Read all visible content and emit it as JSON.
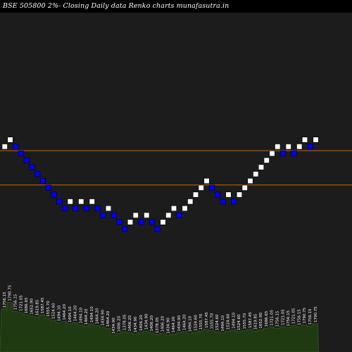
{
  "title": "BSE 505800  2%-  Closing Daily data  Renko  charts munafasutra.in",
  "colors": {
    "background": "#000000",
    "chart_area": "#1c1c1c",
    "up_brick": "#ffffff",
    "down_brick": "#0000ff",
    "level_line": "#cc6600",
    "volume_fill": "#1f3a12",
    "volume_edge": "#2e5a1a",
    "label": "#ffffff"
  },
  "chart_data": {
    "type": "renko",
    "title": "BSE 505800  2%-  Closing Daily data  Renko  charts munafasutra.in",
    "brick_size_percent": 2,
    "bricks": [
      {
        "step": 0,
        "level": 0,
        "dir": "up",
        "price": "1756.15"
      },
      {
        "step": 1,
        "level": 1,
        "dir": "up",
        "price": "1790.75"
      },
      {
        "step": 2,
        "level": 0,
        "dir": "down",
        "price": "1756.15"
      },
      {
        "step": 3,
        "level": -1,
        "dir": "down",
        "price": "1721.05"
      },
      {
        "step": 4,
        "level": -2,
        "dir": "down",
        "price": "1686.65"
      },
      {
        "step": 5,
        "level": -3,
        "dir": "down",
        "price": "1652.90"
      },
      {
        "step": 6,
        "level": -4,
        "dir": "down",
        "price": "1619.85"
      },
      {
        "step": 7,
        "level": -5,
        "dir": "down",
        "price": "1587.45"
      },
      {
        "step": 8,
        "level": -6,
        "dir": "down",
        "price": "1555.70"
      },
      {
        "step": 9,
        "level": -7,
        "dir": "down",
        "price": "1524.60"
      },
      {
        "step": 10,
        "level": -8,
        "dir": "down",
        "price": "1494.10"
      },
      {
        "step": 11,
        "level": -9,
        "dir": "down",
        "price": "1464.20"
      },
      {
        "step": 12,
        "level": -8,
        "dir": "up",
        "price": "1494.10"
      },
      {
        "step": 13,
        "level": -9,
        "dir": "down",
        "price": "1464.20"
      },
      {
        "step": 14,
        "level": -8,
        "dir": "up",
        "price": "1494.10"
      },
      {
        "step": 15,
        "level": -9,
        "dir": "down",
        "price": "1464.20"
      },
      {
        "step": 16,
        "level": -8,
        "dir": "up",
        "price": "1494.10"
      },
      {
        "step": 17,
        "level": -9,
        "dir": "down",
        "price": "1464.20"
      },
      {
        "step": 18,
        "level": -10,
        "dir": "down",
        "price": "1434.90"
      },
      {
        "step": 19,
        "level": -9,
        "dir": "up",
        "price": "1464.20"
      },
      {
        "step": 20,
        "level": -10,
        "dir": "down",
        "price": "1434.90"
      },
      {
        "step": 21,
        "level": -11,
        "dir": "down",
        "price": "1406.20"
      },
      {
        "step": 22,
        "level": -12,
        "dir": "down",
        "price": "1378.05"
      },
      {
        "step": 23,
        "level": -11,
        "dir": "up",
        "price": "1406.20"
      },
      {
        "step": 24,
        "level": -10,
        "dir": "up",
        "price": "1434.90"
      },
      {
        "step": 25,
        "level": -11,
        "dir": "down",
        "price": "1406.20"
      },
      {
        "step": 26,
        "level": -10,
        "dir": "up",
        "price": "1434.90"
      },
      {
        "step": 27,
        "level": -11,
        "dir": "down",
        "price": "1406.20"
      },
      {
        "step": 28,
        "level": -12,
        "dir": "down",
        "price": "1378.05"
      },
      {
        "step": 29,
        "level": -11,
        "dir": "up",
        "price": "1406.20"
      },
      {
        "step": 30,
        "level": -10,
        "dir": "up",
        "price": "1434.90"
      },
      {
        "step": 31,
        "level": -9,
        "dir": "up",
        "price": "1464.20"
      },
      {
        "step": 32,
        "level": -10,
        "dir": "down",
        "price": "1434.90"
      },
      {
        "step": 33,
        "level": -9,
        "dir": "up",
        "price": "1464.20"
      },
      {
        "step": 34,
        "level": -8,
        "dir": "up",
        "price": "1494.10"
      },
      {
        "step": 35,
        "level": -7,
        "dir": "up",
        "price": "1524.60"
      },
      {
        "step": 36,
        "level": -6,
        "dir": "up",
        "price": "1555.70"
      },
      {
        "step": 37,
        "level": -5,
        "dir": "up",
        "price": "1587.45"
      },
      {
        "step": 38,
        "level": -6,
        "dir": "down",
        "price": "1555.70"
      },
      {
        "step": 39,
        "level": -7,
        "dir": "down",
        "price": "1524.60"
      },
      {
        "step": 40,
        "level": -8,
        "dir": "down",
        "price": "1494.10"
      },
      {
        "step": 41,
        "level": -7,
        "dir": "up",
        "price": "1524.60"
      },
      {
        "step": 42,
        "level": -8,
        "dir": "down",
        "price": "1494.10"
      },
      {
        "step": 43,
        "level": -7,
        "dir": "up",
        "price": "1524.60"
      },
      {
        "step": 44,
        "level": -6,
        "dir": "up",
        "price": "1555.70"
      },
      {
        "step": 45,
        "level": -5,
        "dir": "up",
        "price": "1587.45"
      },
      {
        "step": 46,
        "level": -4,
        "dir": "up",
        "price": "1619.85"
      },
      {
        "step": 47,
        "level": -3,
        "dir": "up",
        "price": "1652.90"
      },
      {
        "step": 48,
        "level": -2,
        "dir": "up",
        "price": "1686.65"
      },
      {
        "step": 49,
        "level": -1,
        "dir": "up",
        "price": "1721.05"
      },
      {
        "step": 50,
        "level": 0,
        "dir": "up",
        "price": "1756.15"
      },
      {
        "step": 51,
        "level": -1,
        "dir": "down",
        "price": "1721.05"
      },
      {
        "step": 52,
        "level": 0,
        "dir": "up",
        "price": "1756.15"
      },
      {
        "step": 53,
        "level": -1,
        "dir": "down",
        "price": "1721.05"
      },
      {
        "step": 54,
        "level": 0,
        "dir": "up",
        "price": "1756.15"
      },
      {
        "step": 55,
        "level": 1,
        "dir": "up",
        "price": "1790.75"
      },
      {
        "step": 56,
        "level": 0,
        "dir": "down",
        "price": "1756.15"
      },
      {
        "step": 57,
        "level": 1,
        "dir": "up",
        "price": "1790.75"
      }
    ],
    "reference_lines": [
      {
        "label": "upper",
        "level": 0
      },
      {
        "label": "lower",
        "level": -5
      }
    ],
    "volume": [
      0.76,
      0.88,
      0.72,
      0.7,
      0.66,
      0.64,
      0.62,
      0.66,
      0.6,
      0.56,
      0.52,
      0.54,
      0.5,
      0.52,
      0.48,
      0.46,
      0.5,
      0.47,
      0.44,
      0.42,
      0.3,
      0.33,
      0.36,
      0.34,
      0.32,
      0.35,
      0.37,
      0.34,
      0.31,
      0.33,
      0.3,
      0.32,
      0.34,
      0.36,
      0.33,
      0.35,
      0.37,
      0.4,
      0.38,
      0.36,
      0.34,
      0.37,
      0.39,
      0.36,
      0.38,
      0.4,
      0.37,
      0.39,
      0.42,
      0.44,
      0.42,
      0.45,
      0.43,
      0.47,
      0.45,
      0.48,
      0.46,
      0.5
    ],
    "price_labels": [
      "1756.15",
      "1790.75",
      "1756.15",
      "1721.05",
      "1686.65",
      "1652.90",
      "1619.85",
      "1587.45",
      "1555.70",
      "1524.60",
      "1494.10",
      "1464.20",
      "1494.10",
      "1464.20",
      "1494.10",
      "1464.20",
      "1494.10",
      "1464.20",
      "1434.90",
      "1464.20",
      "1434.90",
      "1406.20",
      "1378.05",
      "1406.20",
      "1434.90",
      "1406.20",
      "1434.90",
      "1406.20",
      "1378.05",
      "1406.20",
      "1434.90",
      "1464.20",
      "1434.90",
      "1464.20",
      "1494.10",
      "1524.60",
      "1555.70",
      "1587.45",
      "1555.70",
      "1524.60",
      "1494.10",
      "1524.60",
      "1494.10",
      "1524.60",
      "1555.70",
      "1587.45",
      "1619.85",
      "1652.90",
      "1686.65",
      "1721.05",
      "1756.15",
      "1721.05",
      "1756.15",
      "1721.05",
      "1756.15",
      "1790.75",
      "1756.15",
      "1790.75"
    ]
  }
}
